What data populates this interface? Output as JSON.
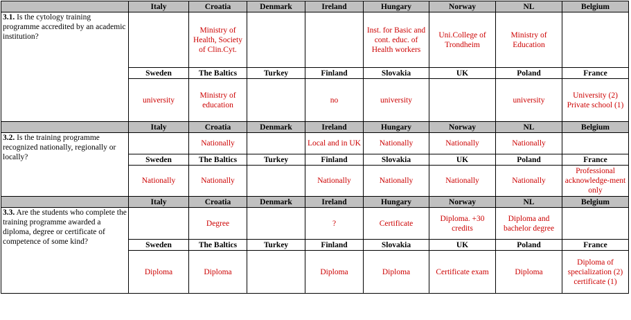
{
  "questions": [
    {
      "number": "3.1.",
      "text": "Is the cytology training programme accredited by an academic institution?",
      "countries_a": [
        "Italy",
        "Croatia",
        "Denmark",
        "Ireland",
        "Hungary",
        "Norway",
        "NL",
        "Belgium"
      ],
      "answers_a": [
        "",
        "Ministry of Health, Society of Clin.Cyt.",
        "",
        "",
        "Inst. for Basic and cont. educ. of Health workers",
        "Uni.College of Trondheim",
        "Ministry of Education",
        ""
      ],
      "countries_b": [
        "Sweden",
        "The Baltics",
        "Turkey",
        "Finland",
        "Slovakia",
        "UK",
        "Poland",
        "France"
      ],
      "answers_b": [
        "university",
        "Ministry of education",
        "",
        "no",
        "university",
        "",
        "university",
        "University (2) Private school (1)"
      ]
    },
    {
      "number": "3.2.",
      "text": "Is the training programme recognized nationally, regionally or locally?",
      "countries_a": [
        "Italy",
        "Croatia",
        "Denmark",
        "Ireland",
        "Hungary",
        "Norway",
        "NL",
        "Belgium"
      ],
      "answers_a": [
        "",
        "Nationally",
        "",
        "Local and in UK",
        "Nationally",
        "Nationally",
        "Nationally",
        ""
      ],
      "countries_b": [
        "Sweden",
        "The Baltics",
        "Turkey",
        "Finland",
        "Slovakia",
        "UK",
        "Poland",
        "France"
      ],
      "answers_b": [
        "Nationally",
        "Nationally",
        "",
        "Nationally",
        "Nationally",
        "Nationally",
        "Nationally",
        "Professional acknowledge-ment only"
      ]
    },
    {
      "number": "3.3.",
      "text": "Are the students who complete the training programme awarded a diploma, degree or certificate of competence of some kind?",
      "countries_a": [
        "Italy",
        "Croatia",
        "Denmark",
        "Ireland",
        "Hungary",
        "Norway",
        "NL",
        "Belgium"
      ],
      "answers_a": [
        "",
        "Degree",
        "",
        "?",
        "Certificate",
        "Diploma. +30 credits",
        "Diploma and bachelor degree",
        ""
      ],
      "countries_b": [
        "Sweden",
        "The Baltics",
        "Turkey",
        "Finland",
        "Slovakia",
        "UK",
        "Poland",
        "France"
      ],
      "answers_b": [
        "Diploma",
        "Diploma",
        "",
        "Diploma",
        "Diploma",
        "Certificate exam",
        "Diploma",
        "Diploma of specialization (2) certificate (1)"
      ]
    }
  ]
}
